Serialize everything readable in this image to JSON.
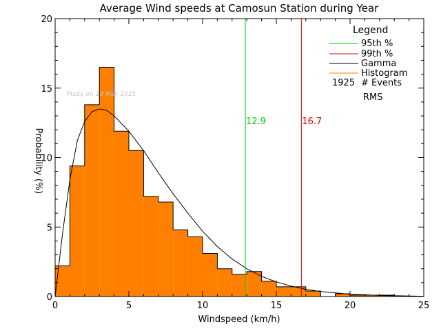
{
  "chart_data": {
    "type": "bar",
    "title": "Average Wind speeds at Camosun Station during Year",
    "xlabel": "Windspeed (km/h)",
    "ylabel": "Probability (%)",
    "ylabel_parts": [
      "Probability",
      "(%)"
    ],
    "xlim": [
      0,
      25
    ],
    "ylim": [
      0,
      20
    ],
    "xticks": [
      0,
      5,
      10,
      15,
      20,
      25
    ],
    "yticks": [
      0,
      5,
      10,
      15,
      20
    ],
    "bin_width": 1,
    "histogram": {
      "x_start": [
        0,
        1,
        2,
        3,
        4,
        5,
        6,
        7,
        8,
        9,
        10,
        11,
        12,
        13,
        14,
        15,
        16,
        17,
        18,
        19,
        20,
        21,
        22,
        23,
        24
      ],
      "values": [
        2.2,
        9.4,
        13.8,
        16.5,
        11.9,
        10.5,
        7.2,
        6.8,
        4.8,
        4.3,
        3.1,
        2.0,
        1.6,
        1.8,
        1.1,
        0.7,
        0.7,
        0.4,
        0.0,
        0.2,
        0.1,
        0.1,
        0.1,
        0.0,
        0.0
      ]
    },
    "gamma_curve": {
      "x": [
        0,
        0.5,
        1,
        1.5,
        2,
        2.5,
        3,
        3.5,
        4,
        5,
        6,
        7,
        8,
        9,
        10,
        11,
        12,
        13,
        14,
        15,
        16,
        17,
        18,
        20,
        22,
        25
      ],
      "y": [
        0,
        4.5,
        8.4,
        11.2,
        12.6,
        13.3,
        13.5,
        13.4,
        13.0,
        11.9,
        10.5,
        8.9,
        7.4,
        6.0,
        4.7,
        3.6,
        2.7,
        2.0,
        1.45,
        1.05,
        0.75,
        0.52,
        0.36,
        0.17,
        0.08,
        0.02
      ]
    },
    "percentile_95": 12.9,
    "percentile_99": 16.7,
    "percentile_95_label": "12.9",
    "percentile_99_label": "16.7",
    "legend": {
      "title": "Legend",
      "entries": [
        {
          "label": "95th %",
          "color": "#00cc00"
        },
        {
          "label": "99th %",
          "color": "#dd0000"
        },
        {
          "label": "Gamma",
          "color": "#000000"
        },
        {
          "label": "Histogram",
          "color": "#ff8000"
        }
      ],
      "events_count": "1925",
      "events_label": "# Events",
      "rms_label": "RMS"
    },
    "watermark": "Made on 29 May 2025",
    "colors": {
      "histogram_fill": "#ff8000",
      "p95": "#00cc00",
      "p99": "#dd0000",
      "curve": "#000000",
      "axis": "#000000",
      "watermark": "#c8c8c8"
    }
  }
}
